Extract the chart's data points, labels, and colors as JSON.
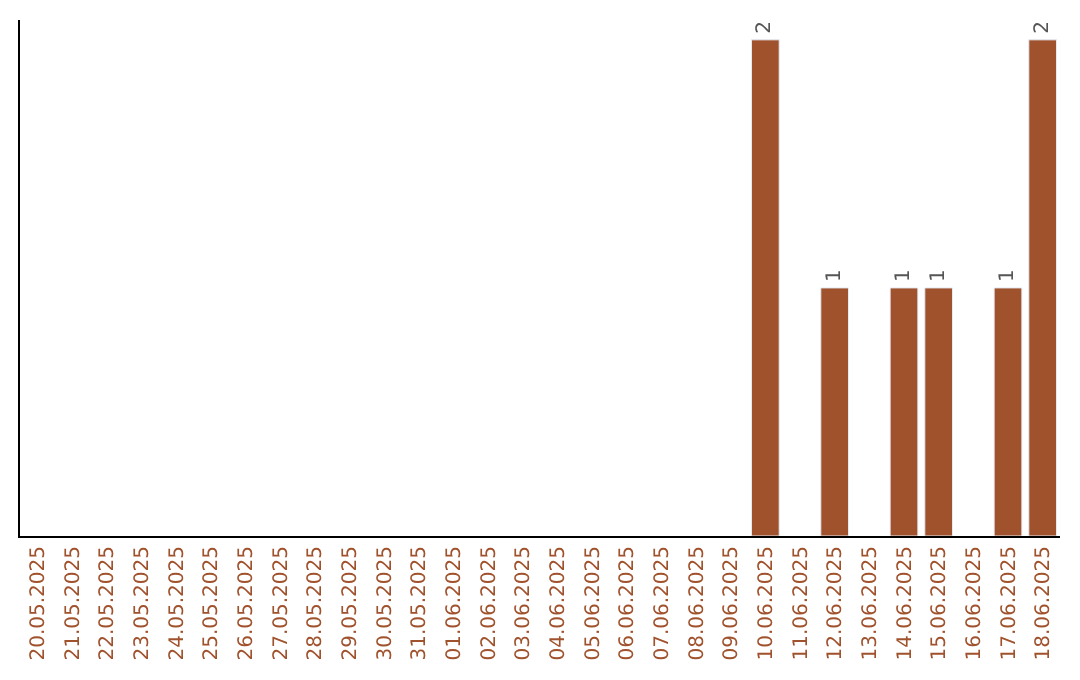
{
  "chart_data": {
    "type": "bar",
    "categories": [
      "20.05.2025",
      "21.05.2025",
      "22.05.2025",
      "23.05.2025",
      "24.05.2025",
      "25.05.2025",
      "26.05.2025",
      "27.05.2025",
      "28.05.2025",
      "29.05.2025",
      "30.05.2025",
      "31.05.2025",
      "01.06.2025",
      "02.06.2025",
      "03.06.2025",
      "04.06.2025",
      "05.06.2025",
      "06.06.2025",
      "07.06.2025",
      "08.06.2025",
      "09.06.2025",
      "10.06.2025",
      "11.06.2025",
      "12.06.2025",
      "13.06.2025",
      "14.06.2025",
      "15.06.2025",
      "16.06.2025",
      "17.06.2025",
      "18.06.2025"
    ],
    "values": [
      null,
      null,
      null,
      null,
      null,
      null,
      null,
      null,
      null,
      null,
      null,
      null,
      null,
      null,
      null,
      null,
      null,
      null,
      null,
      null,
      null,
      2,
      null,
      1,
      null,
      1,
      1,
      null,
      1,
      2
    ],
    "color": "#a0522d",
    "ylim": [
      0,
      2.08
    ],
    "data_labels": true,
    "tick_labels": "x"
  }
}
